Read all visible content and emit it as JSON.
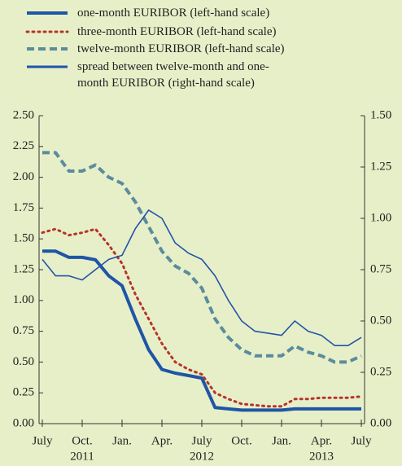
{
  "chart_data": {
    "type": "line",
    "x": [
      "2011-07",
      "2011-08",
      "2011-09",
      "2011-10",
      "2011-11",
      "2011-12",
      "2012-01",
      "2012-02",
      "2012-03",
      "2012-04",
      "2012-05",
      "2012-06",
      "2012-07",
      "2012-08",
      "2012-09",
      "2012-10",
      "2012-11",
      "2012-12",
      "2013-01",
      "2013-02",
      "2013-03",
      "2013-04",
      "2013-05",
      "2013-06",
      "2013-07"
    ],
    "series": [
      {
        "name": "one-month EURIBOR (left-hand scale)",
        "color": "#1f55a6",
        "line_style": "solid",
        "line_width": 4,
        "axis": "y",
        "values": [
          1.4,
          1.4,
          1.35,
          1.35,
          1.33,
          1.2,
          1.12,
          0.85,
          0.6,
          0.44,
          0.41,
          0.39,
          0.37,
          0.13,
          0.12,
          0.11,
          0.11,
          0.11,
          0.11,
          0.12,
          0.12,
          0.12,
          0.12,
          0.12,
          0.12
        ]
      },
      {
        "name": "three-month EURIBOR (left-hand scale)",
        "color": "#b5342b",
        "line_style": "dotted",
        "line_width": 3,
        "axis": "y",
        "values": [
          1.55,
          1.58,
          1.53,
          1.55,
          1.58,
          1.45,
          1.3,
          1.05,
          0.85,
          0.65,
          0.5,
          0.44,
          0.4,
          0.25,
          0.2,
          0.16,
          0.15,
          0.14,
          0.14,
          0.2,
          0.2,
          0.21,
          0.21,
          0.21,
          0.22
        ]
      },
      {
        "name": "twelve-month EURIBOR (left-hand scale)",
        "color": "#5a8c9e",
        "line_style": "dashed",
        "line_width": 4,
        "axis": "y",
        "values": [
          2.2,
          2.2,
          2.05,
          2.05,
          2.1,
          2.0,
          1.95,
          1.8,
          1.6,
          1.4,
          1.28,
          1.22,
          1.1,
          0.85,
          0.7,
          0.6,
          0.55,
          0.55,
          0.55,
          0.63,
          0.58,
          0.55,
          0.5,
          0.5,
          0.55
        ]
      },
      {
        "name": "spread between twelve-month and one-month EURIBOR (right-hand scale)",
        "color": "#2253aa",
        "line_style": "solid",
        "line_width": 1.6,
        "axis": "y2",
        "values": [
          0.8,
          0.72,
          0.72,
          0.7,
          0.75,
          0.8,
          0.82,
          0.95,
          1.04,
          1.0,
          0.88,
          0.83,
          0.8,
          0.72,
          0.6,
          0.5,
          0.45,
          0.44,
          0.43,
          0.5,
          0.45,
          0.43,
          0.38,
          0.38,
          0.42
        ]
      }
    ],
    "xlim": [
      "2011-07",
      "2013-07"
    ],
    "xticks": [
      {
        "value": "2011-07",
        "label": "July"
      },
      {
        "value": "2011-10",
        "label": "Oct."
      },
      {
        "value": "2012-01",
        "label": "Jan."
      },
      {
        "value": "2012-04",
        "label": "Apr."
      },
      {
        "value": "2012-07",
        "label": "July"
      },
      {
        "value": "2012-10",
        "label": "Oct."
      },
      {
        "value": "2013-01",
        "label": "Jan."
      },
      {
        "value": "2013-04",
        "label": "Apr."
      },
      {
        "value": "2013-07",
        "label": "July"
      }
    ],
    "x_year_labels": [
      {
        "value": "2011-10",
        "label": "2011"
      },
      {
        "value": "2012-07",
        "label": "2012"
      },
      {
        "value": "2013-04",
        "label": "2013"
      }
    ],
    "ylim": [
      0,
      2.5
    ],
    "yticks": [
      {
        "value": 0,
        "label": "0.00"
      },
      0.25,
      {
        "value": 0.5,
        "label": "0.50"
      },
      0.75,
      {
        "value": 1,
        "label": "1.00"
      },
      1.25,
      {
        "value": 1.5,
        "label": "1.50"
      },
      1.75,
      {
        "value": 2,
        "label": "2.00"
      },
      2.25,
      {
        "value": 2.5,
        "label": "2.50"
      }
    ],
    "y2lim": [
      0,
      1.5
    ],
    "y2ticks": [
      {
        "value": 0,
        "label": "0.00"
      },
      0.25,
      {
        "value": 0.5,
        "label": "0.50"
      },
      0.75,
      {
        "value": 1,
        "label": "1.00"
      },
      1.25,
      {
        "value": 1.5,
        "label": "1.50"
      }
    ],
    "grid": false
  }
}
